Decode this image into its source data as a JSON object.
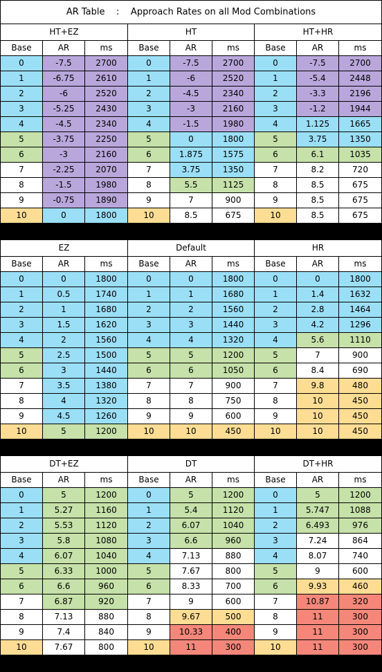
{
  "title": "AR Table    :    Approach Rates on all Mod Combinations",
  "colors": {
    "blue": "#9bdff7",
    "purple": "#b9a7dc",
    "green": "#c6e1a9",
    "white": "#ffffff",
    "yellow": "#fddc94",
    "red": "#f4877a"
  },
  "headers": [
    "Base",
    "AR",
    "ms"
  ],
  "panels": [
    {
      "name": "HT+EZ",
      "rows": [
        {
          "base": "0",
          "ar": "-7.5",
          "ms": "2700",
          "colors": [
            "blue",
            "purple",
            "purple"
          ]
        },
        {
          "base": "1",
          "ar": "-6.75",
          "ms": "2610",
          "colors": [
            "blue",
            "purple",
            "purple"
          ]
        },
        {
          "base": "2",
          "ar": "-6",
          "ms": "2520",
          "colors": [
            "blue",
            "purple",
            "purple"
          ]
        },
        {
          "base": "3",
          "ar": "-5.25",
          "ms": "2430",
          "colors": [
            "blue",
            "purple",
            "purple"
          ]
        },
        {
          "base": "4",
          "ar": "-4.5",
          "ms": "2340",
          "colors": [
            "blue",
            "purple",
            "purple"
          ]
        },
        {
          "base": "5",
          "ar": "-3.75",
          "ms": "2250",
          "colors": [
            "green",
            "purple",
            "purple"
          ]
        },
        {
          "base": "6",
          "ar": "-3",
          "ms": "2160",
          "colors": [
            "green",
            "purple",
            "purple"
          ]
        },
        {
          "base": "7",
          "ar": "-2.25",
          "ms": "2070",
          "colors": [
            "white",
            "purple",
            "purple"
          ]
        },
        {
          "base": "8",
          "ar": "-1.5",
          "ms": "1980",
          "colors": [
            "white",
            "purple",
            "purple"
          ]
        },
        {
          "base": "9",
          "ar": "-0.75",
          "ms": "1890",
          "colors": [
            "white",
            "purple",
            "purple"
          ]
        },
        {
          "base": "10",
          "ar": "0",
          "ms": "1800",
          "colors": [
            "yellow",
            "blue",
            "blue"
          ]
        }
      ]
    },
    {
      "name": "HT",
      "rows": [
        {
          "base": "0",
          "ar": "-7.5",
          "ms": "2700",
          "colors": [
            "blue",
            "purple",
            "purple"
          ]
        },
        {
          "base": "1",
          "ar": "-6",
          "ms": "2520",
          "colors": [
            "blue",
            "purple",
            "purple"
          ]
        },
        {
          "base": "2",
          "ar": "-4.5",
          "ms": "2340",
          "colors": [
            "blue",
            "purple",
            "purple"
          ]
        },
        {
          "base": "3",
          "ar": "-3",
          "ms": "2160",
          "colors": [
            "blue",
            "purple",
            "purple"
          ]
        },
        {
          "base": "4",
          "ar": "-1.5",
          "ms": "1980",
          "colors": [
            "blue",
            "purple",
            "purple"
          ]
        },
        {
          "base": "5",
          "ar": "0",
          "ms": "1800",
          "colors": [
            "green",
            "blue",
            "blue"
          ]
        },
        {
          "base": "6",
          "ar": "1.875",
          "ms": "1575",
          "colors": [
            "green",
            "blue",
            "blue"
          ]
        },
        {
          "base": "7",
          "ar": "3.75",
          "ms": "1350",
          "colors": [
            "white",
            "blue",
            "blue"
          ]
        },
        {
          "base": "8",
          "ar": "5.5",
          "ms": "1125",
          "colors": [
            "white",
            "green",
            "green"
          ]
        },
        {
          "base": "9",
          "ar": "7",
          "ms": "900",
          "colors": [
            "white",
            "white",
            "white"
          ]
        },
        {
          "base": "10",
          "ar": "8.5",
          "ms": "675",
          "colors": [
            "yellow",
            "white",
            "white"
          ]
        }
      ]
    },
    {
      "name": "HT+HR",
      "rows": [
        {
          "base": "0",
          "ar": "-7.5",
          "ms": "2700",
          "colors": [
            "blue",
            "purple",
            "purple"
          ]
        },
        {
          "base": "1",
          "ar": "-5.4",
          "ms": "2448",
          "colors": [
            "blue",
            "purple",
            "purple"
          ]
        },
        {
          "base": "2",
          "ar": "-3.3",
          "ms": "2196",
          "colors": [
            "blue",
            "purple",
            "purple"
          ]
        },
        {
          "base": "3",
          "ar": "-1.2",
          "ms": "1944",
          "colors": [
            "blue",
            "purple",
            "purple"
          ]
        },
        {
          "base": "4",
          "ar": "1.125",
          "ms": "1665",
          "colors": [
            "blue",
            "blue",
            "blue"
          ]
        },
        {
          "base": "5",
          "ar": "3.75",
          "ms": "1350",
          "colors": [
            "green",
            "blue",
            "blue"
          ]
        },
        {
          "base": "6",
          "ar": "6.1",
          "ms": "1035",
          "colors": [
            "green",
            "green",
            "green"
          ]
        },
        {
          "base": "7",
          "ar": "8.2",
          "ms": "720",
          "colors": [
            "white",
            "white",
            "white"
          ]
        },
        {
          "base": "8",
          "ar": "8.5",
          "ms": "675",
          "colors": [
            "white",
            "white",
            "white"
          ]
        },
        {
          "base": "9",
          "ar": "8.5",
          "ms": "675",
          "colors": [
            "white",
            "white",
            "white"
          ]
        },
        {
          "base": "10",
          "ar": "8.5",
          "ms": "675",
          "colors": [
            "yellow",
            "white",
            "white"
          ]
        }
      ]
    },
    {
      "name": "EZ",
      "rows": [
        {
          "base": "0",
          "ar": "0",
          "ms": "1800",
          "colors": [
            "blue",
            "blue",
            "blue"
          ]
        },
        {
          "base": "1",
          "ar": "0.5",
          "ms": "1740",
          "colors": [
            "blue",
            "blue",
            "blue"
          ]
        },
        {
          "base": "2",
          "ar": "1",
          "ms": "1680",
          "colors": [
            "blue",
            "blue",
            "blue"
          ]
        },
        {
          "base": "3",
          "ar": "1.5",
          "ms": "1620",
          "colors": [
            "blue",
            "blue",
            "blue"
          ]
        },
        {
          "base": "4",
          "ar": "2",
          "ms": "1560",
          "colors": [
            "blue",
            "blue",
            "blue"
          ]
        },
        {
          "base": "5",
          "ar": "2.5",
          "ms": "1500",
          "colors": [
            "green",
            "blue",
            "blue"
          ]
        },
        {
          "base": "6",
          "ar": "3",
          "ms": "1440",
          "colors": [
            "green",
            "blue",
            "blue"
          ]
        },
        {
          "base": "7",
          "ar": "3.5",
          "ms": "1380",
          "colors": [
            "white",
            "blue",
            "blue"
          ]
        },
        {
          "base": "8",
          "ar": "4",
          "ms": "1320",
          "colors": [
            "white",
            "blue",
            "blue"
          ]
        },
        {
          "base": "9",
          "ar": "4.5",
          "ms": "1260",
          "colors": [
            "white",
            "blue",
            "blue"
          ]
        },
        {
          "base": "10",
          "ar": "5",
          "ms": "1200",
          "colors": [
            "yellow",
            "green",
            "green"
          ]
        }
      ]
    },
    {
      "name": "Default",
      "rows": [
        {
          "base": "0",
          "ar": "0",
          "ms": "1800",
          "colors": [
            "blue",
            "blue",
            "blue"
          ]
        },
        {
          "base": "1",
          "ar": "1",
          "ms": "1680",
          "colors": [
            "blue",
            "blue",
            "blue"
          ]
        },
        {
          "base": "2",
          "ar": "2",
          "ms": "1560",
          "colors": [
            "blue",
            "blue",
            "blue"
          ]
        },
        {
          "base": "3",
          "ar": "3",
          "ms": "1440",
          "colors": [
            "blue",
            "blue",
            "blue"
          ]
        },
        {
          "base": "4",
          "ar": "4",
          "ms": "1320",
          "colors": [
            "blue",
            "blue",
            "blue"
          ]
        },
        {
          "base": "5",
          "ar": "5",
          "ms": "1200",
          "colors": [
            "green",
            "green",
            "green"
          ]
        },
        {
          "base": "6",
          "ar": "6",
          "ms": "1050",
          "colors": [
            "green",
            "green",
            "green"
          ]
        },
        {
          "base": "7",
          "ar": "7",
          "ms": "900",
          "colors": [
            "white",
            "white",
            "white"
          ]
        },
        {
          "base": "8",
          "ar": "8",
          "ms": "750",
          "colors": [
            "white",
            "white",
            "white"
          ]
        },
        {
          "base": "9",
          "ar": "9",
          "ms": "600",
          "colors": [
            "white",
            "white",
            "white"
          ]
        },
        {
          "base": "10",
          "ar": "10",
          "ms": "450",
          "colors": [
            "yellow",
            "yellow",
            "yellow"
          ]
        }
      ]
    },
    {
      "name": "HR",
      "rows": [
        {
          "base": "0",
          "ar": "0",
          "ms": "1800",
          "colors": [
            "blue",
            "blue",
            "blue"
          ]
        },
        {
          "base": "1",
          "ar": "1.4",
          "ms": "1632",
          "colors": [
            "blue",
            "blue",
            "blue"
          ]
        },
        {
          "base": "2",
          "ar": "2.8",
          "ms": "1464",
          "colors": [
            "blue",
            "blue",
            "blue"
          ]
        },
        {
          "base": "3",
          "ar": "4.2",
          "ms": "1296",
          "colors": [
            "blue",
            "blue",
            "blue"
          ]
        },
        {
          "base": "4",
          "ar": "5.6",
          "ms": "1110",
          "colors": [
            "blue",
            "green",
            "green"
          ]
        },
        {
          "base": "5",
          "ar": "7",
          "ms": "900",
          "colors": [
            "green",
            "white",
            "white"
          ]
        },
        {
          "base": "6",
          "ar": "8.4",
          "ms": "690",
          "colors": [
            "green",
            "white",
            "white"
          ]
        },
        {
          "base": "7",
          "ar": "9.8",
          "ms": "480",
          "colors": [
            "white",
            "yellow",
            "yellow"
          ]
        },
        {
          "base": "8",
          "ar": "10",
          "ms": "450",
          "colors": [
            "white",
            "yellow",
            "yellow"
          ]
        },
        {
          "base": "9",
          "ar": "10",
          "ms": "450",
          "colors": [
            "white",
            "yellow",
            "yellow"
          ]
        },
        {
          "base": "10",
          "ar": "10",
          "ms": "450",
          "colors": [
            "yellow",
            "yellow",
            "yellow"
          ]
        }
      ]
    },
    {
      "name": "DT+EZ",
      "rows": [
        {
          "base": "0",
          "ar": "5",
          "ms": "1200",
          "colors": [
            "blue",
            "green",
            "green"
          ]
        },
        {
          "base": "1",
          "ar": "5.27",
          "ms": "1160",
          "colors": [
            "blue",
            "green",
            "green"
          ]
        },
        {
          "base": "2",
          "ar": "5.53",
          "ms": "1120",
          "colors": [
            "blue",
            "green",
            "green"
          ]
        },
        {
          "base": "3",
          "ar": "5.8",
          "ms": "1080",
          "colors": [
            "blue",
            "green",
            "green"
          ]
        },
        {
          "base": "4",
          "ar": "6.07",
          "ms": "1040",
          "colors": [
            "blue",
            "green",
            "green"
          ]
        },
        {
          "base": "5",
          "ar": "6.33",
          "ms": "1000",
          "colors": [
            "green",
            "green",
            "green"
          ]
        },
        {
          "base": "6",
          "ar": "6.6",
          "ms": "960",
          "colors": [
            "green",
            "green",
            "green"
          ]
        },
        {
          "base": "7",
          "ar": "6.87",
          "ms": "920",
          "colors": [
            "white",
            "green",
            "green"
          ]
        },
        {
          "base": "8",
          "ar": "7.13",
          "ms": "880",
          "colors": [
            "white",
            "white",
            "white"
          ]
        },
        {
          "base": "9",
          "ar": "7.4",
          "ms": "840",
          "colors": [
            "white",
            "white",
            "white"
          ]
        },
        {
          "base": "10",
          "ar": "7.67",
          "ms": "800",
          "colors": [
            "yellow",
            "white",
            "white"
          ]
        }
      ]
    },
    {
      "name": "DT",
      "rows": [
        {
          "base": "0",
          "ar": "5",
          "ms": "1200",
          "colors": [
            "blue",
            "green",
            "green"
          ]
        },
        {
          "base": "1",
          "ar": "5.4",
          "ms": "1120",
          "colors": [
            "blue",
            "green",
            "green"
          ]
        },
        {
          "base": "2",
          "ar": "6.07",
          "ms": "1040",
          "colors": [
            "blue",
            "green",
            "green"
          ]
        },
        {
          "base": "3",
          "ar": "6.6",
          "ms": "960",
          "colors": [
            "blue",
            "green",
            "green"
          ]
        },
        {
          "base": "4",
          "ar": "7.13",
          "ms": "880",
          "colors": [
            "blue",
            "white",
            "white"
          ]
        },
        {
          "base": "5",
          "ar": "7.67",
          "ms": "800",
          "colors": [
            "green",
            "white",
            "white"
          ]
        },
        {
          "base": "6",
          "ar": "8.33",
          "ms": "700",
          "colors": [
            "green",
            "white",
            "white"
          ]
        },
        {
          "base": "7",
          "ar": "9",
          "ms": "600",
          "colors": [
            "white",
            "white",
            "white"
          ]
        },
        {
          "base": "8",
          "ar": "9.67",
          "ms": "500",
          "colors": [
            "white",
            "yellow",
            "yellow"
          ]
        },
        {
          "base": "9",
          "ar": "10.33",
          "ms": "400",
          "colors": [
            "white",
            "red",
            "red"
          ]
        },
        {
          "base": "10",
          "ar": "11",
          "ms": "300",
          "colors": [
            "yellow",
            "red",
            "red"
          ]
        }
      ]
    },
    {
      "name": "DT+HR",
      "rows": [
        {
          "base": "0",
          "ar": "5",
          "ms": "1200",
          "colors": [
            "blue",
            "green",
            "green"
          ]
        },
        {
          "base": "1",
          "ar": "5.747",
          "ms": "1088",
          "colors": [
            "blue",
            "green",
            "green"
          ]
        },
        {
          "base": "2",
          "ar": "6.493",
          "ms": "976",
          "colors": [
            "blue",
            "green",
            "green"
          ]
        },
        {
          "base": "3",
          "ar": "7.24",
          "ms": "864",
          "colors": [
            "blue",
            "white",
            "white"
          ]
        },
        {
          "base": "4",
          "ar": "8.07",
          "ms": "740",
          "colors": [
            "blue",
            "white",
            "white"
          ]
        },
        {
          "base": "5",
          "ar": "9",
          "ms": "600",
          "colors": [
            "green",
            "white",
            "white"
          ]
        },
        {
          "base": "6",
          "ar": "9.93",
          "ms": "460",
          "colors": [
            "green",
            "yellow",
            "yellow"
          ]
        },
        {
          "base": "7",
          "ar": "10.87",
          "ms": "320",
          "colors": [
            "white",
            "red",
            "red"
          ]
        },
        {
          "base": "8",
          "ar": "11",
          "ms": "300",
          "colors": [
            "white",
            "red",
            "red"
          ]
        },
        {
          "base": "9",
          "ar": "11",
          "ms": "300",
          "colors": [
            "white",
            "red",
            "red"
          ]
        },
        {
          "base": "10",
          "ar": "11",
          "ms": "300",
          "colors": [
            "yellow",
            "red",
            "red"
          ]
        }
      ]
    }
  ]
}
